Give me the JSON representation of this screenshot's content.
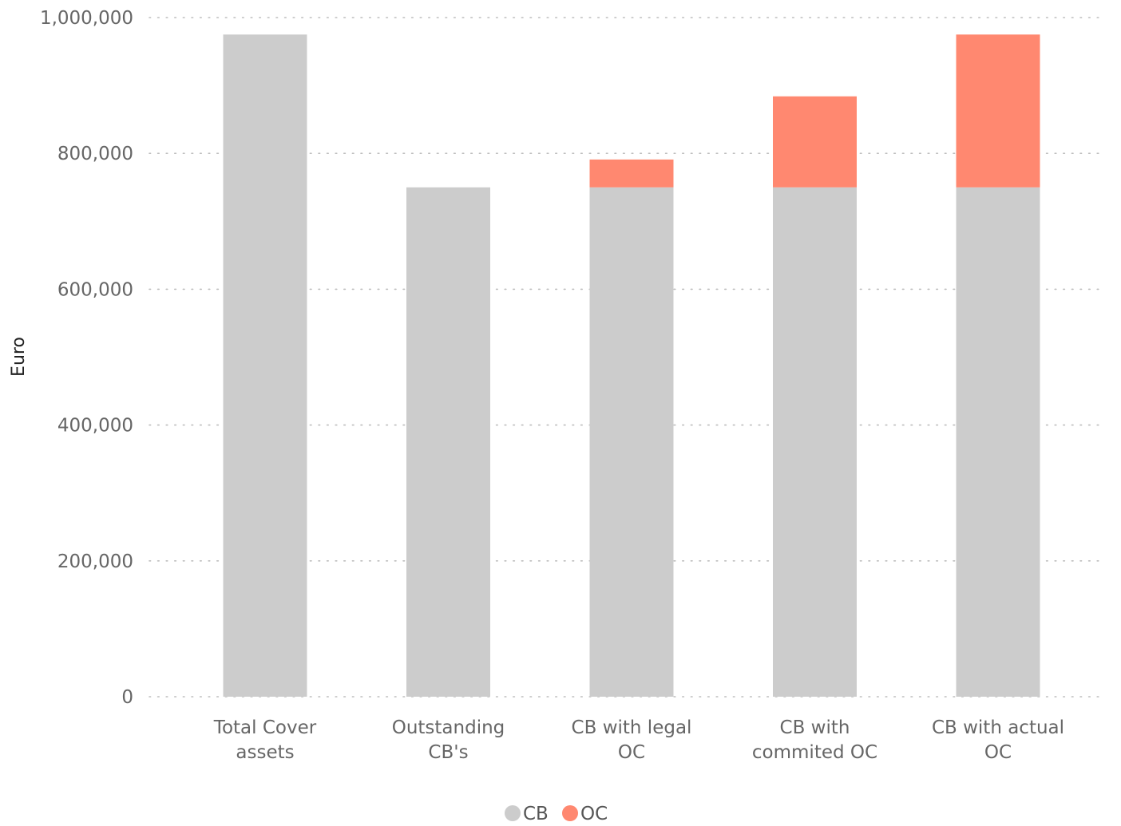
{
  "chart_data": {
    "type": "bar",
    "stacked": true,
    "categories": [
      [
        "Total Cover",
        "assets"
      ],
      [
        "Outstanding",
        "CB's"
      ],
      [
        "CB with legal",
        "OC"
      ],
      [
        "CB with",
        "commited OC"
      ],
      [
        "CB with actual",
        "OC"
      ]
    ],
    "series": [
      {
        "name": "CB",
        "color": "#cccccc",
        "values": [
          975000,
          750000,
          750000,
          750000,
          750000
        ]
      },
      {
        "name": "OC",
        "color": "#ff8870",
        "values": [
          0,
          0,
          41000,
          134000,
          225000
        ]
      }
    ],
    "title": "",
    "xlabel": "",
    "ylabel": "Euro",
    "ylim": [
      0,
      1000000
    ],
    "yticks": [
      0,
      200000,
      400000,
      600000,
      800000,
      1000000
    ],
    "ytick_labels": [
      "0",
      "200,000",
      "400,000",
      "600,000",
      "800,000",
      "1,000,000"
    ],
    "grid": "horizontal-dotted",
    "legend_position": "bottom-center"
  }
}
